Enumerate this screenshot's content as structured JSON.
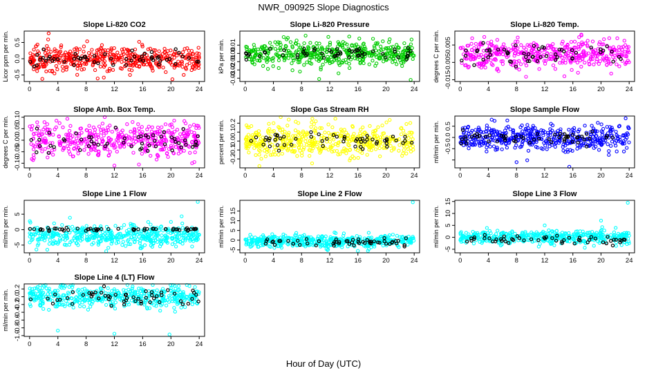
{
  "figure": {
    "title": "NWR_090925  Slope Diagnostics",
    "xlabel": "Hour of Day (UTC)"
  },
  "chart_data": [
    {
      "type": "scatter",
      "title": "Slope Li-820 CO2",
      "ylabel": "Licor ppm per min.",
      "color": "#ff0000",
      "xlim": [
        0,
        24
      ],
      "ylim": [
        -0.7,
        0.85
      ],
      "xticks": [
        0,
        4,
        8,
        12,
        16,
        20,
        24
      ],
      "yticks": [
        -0.5,
        0.0,
        0.5
      ],
      "yticklabels": [
        "-0.5",
        "0.0",
        "0.5"
      ],
      "spread": 0.18,
      "ref_spread": 0.12,
      "outliers": [
        {
          "x": 2.7,
          "y": 0.78
        },
        {
          "x": 1.8,
          "y": -0.62
        },
        {
          "x": 15.5,
          "y": 0.52
        },
        {
          "x": 10.5,
          "y": -0.58
        }
      ]
    },
    {
      "type": "scatter",
      "title": "Slope Li-820 Pressure",
      "ylabel": "kPa per min.",
      "color": "#00cc00",
      "xlim": [
        0,
        24
      ],
      "ylim": [
        -0.034,
        0.027
      ],
      "xticks": [
        0,
        4,
        8,
        12,
        16,
        20,
        24
      ],
      "yticks": [
        -0.03,
        -0.02,
        -0.01,
        0.0,
        0.01
      ],
      "yticklabels": [
        "-0.03",
        "-0.02",
        "-0.01",
        "0.00",
        "0.01"
      ],
      "spread": 0.008,
      "ref_spread": 0.004,
      "outliers": [
        {
          "x": 10.5,
          "y": -0.031
        },
        {
          "x": 23.5,
          "y": -0.032
        },
        {
          "x": 11.8,
          "y": 0.02
        },
        {
          "x": 16.2,
          "y": 0.018
        }
      ]
    },
    {
      "type": "scatter",
      "title": "Slope Li-820 Temp.",
      "ylabel": "degrees C per min.",
      "color": "#ff00ff",
      "xlim": [
        0,
        24
      ],
      "ylim": [
        -0.016,
        0.013
      ],
      "xticks": [
        0,
        4,
        8,
        12,
        16,
        20,
        24
      ],
      "yticks": [
        -0.015,
        -0.005,
        0.005
      ],
      "yticklabels": [
        "-0.015",
        "-0.005",
        "0.005"
      ],
      "spread": 0.004,
      "ref_spread": 0.003,
      "outliers": [
        {
          "x": 14.8,
          "y": -0.013
        },
        {
          "x": 17.2,
          "y": 0.011
        },
        {
          "x": 3.0,
          "y": -0.008
        }
      ]
    },
    {
      "type": "scatter",
      "title": "Slope Amb. Box Temp.",
      "ylabel": "degrees C per min.",
      "color": "#ff00ff",
      "xlim": [
        0,
        24
      ],
      "ylim": [
        -0.12,
        0.105
      ],
      "xticks": [
        0,
        4,
        8,
        12,
        16,
        20,
        24
      ],
      "yticks": [
        -0.1,
        -0.05,
        0.0,
        0.05,
        0.1
      ],
      "yticklabels": [
        "-0.10",
        "-0.05",
        "0.00",
        "0.05",
        "0.10"
      ],
      "spread": 0.035,
      "ref_spread": 0.025,
      "outliers": [
        {
          "x": 12.0,
          "y": -0.11
        },
        {
          "x": 3.8,
          "y": 0.085
        },
        {
          "x": 23.0,
          "y": -0.1
        }
      ]
    },
    {
      "type": "scatter",
      "title": "Slope Gas Stream RH",
      "ylabel": "percent per min.",
      "color": "#ffff00",
      "xlim": [
        0,
        24
      ],
      "ylim": [
        -0.3,
        0.28
      ],
      "xticks": [
        0,
        4,
        8,
        12,
        16,
        20,
        24
      ],
      "yticks": [
        -0.2,
        -0.1,
        0.0,
        0.1,
        0.2
      ],
      "yticklabels": [
        "-0.2",
        "-0.1",
        "0.0",
        "0.1",
        "0.2"
      ],
      "spread": 0.09,
      "ref_spread": 0.05,
      "outliers": [
        {
          "x": 2.0,
          "y": -0.28
        },
        {
          "x": 12.8,
          "y": 0.25
        },
        {
          "x": 9.5,
          "y": -0.25
        }
      ]
    },
    {
      "type": "scatter",
      "title": "Slope Sample Flow",
      "ylabel": "ml/min per min.",
      "color": "#0000ff",
      "xlim": [
        0,
        24
      ],
      "ylim": [
        -1.35,
        0.95
      ],
      "xticks": [
        0,
        4,
        8,
        12,
        16,
        20,
        24
      ],
      "yticks": [
        -1.0,
        -0.5,
        0.0,
        0.5
      ],
      "yticklabels": [
        "",
        "-0.5",
        "0.0",
        "0.5"
      ],
      "spread": 0.28,
      "ref_spread": 0.15,
      "outliers": [
        {
          "x": 23.5,
          "y": 0.85
        },
        {
          "x": 15.5,
          "y": -1.3
        },
        {
          "x": 8.0,
          "y": -1.1
        }
      ]
    },
    {
      "type": "scatter",
      "title": "Slope Line 1 Flow",
      "ylabel": "ml/min per min.",
      "color": "#00ffff",
      "xlim": [
        0,
        24
      ],
      "ylim": [
        -7.5,
        9.5
      ],
      "xticks": [
        0,
        4,
        8,
        12,
        16,
        20,
        24
      ],
      "yticks": [
        -5,
        0,
        5
      ],
      "yticklabels": [
        "-5",
        "0",
        "5"
      ],
      "center": -2.0,
      "spread": 1.6,
      "ref_center": 0.1,
      "ref_spread": 0.2,
      "outliers": [
        {
          "x": 23.8,
          "y": 9.0
        },
        {
          "x": 2.5,
          "y": -6.5
        },
        {
          "x": 20.0,
          "y": 2.5
        }
      ]
    },
    {
      "type": "scatter",
      "title": "Slope Line 2 Flow",
      "ylabel": "ml/min per min.",
      "color": "#00ffff",
      "xlim": [
        0,
        24
      ],
      "ylim": [
        -6.5,
        20.5
      ],
      "xticks": [
        0,
        4,
        8,
        12,
        16,
        20,
        24
      ],
      "yticks": [
        -5,
        0,
        5,
        10,
        15
      ],
      "yticklabels": [
        "-5",
        "0",
        "5",
        "10",
        "15"
      ],
      "center": -0.5,
      "spread": 1.5,
      "ref_center": -1.0,
      "ref_spread": 1.2,
      "outliers": [
        {
          "x": 23.8,
          "y": 19.5
        },
        {
          "x": 14.0,
          "y": 3.5
        },
        {
          "x": 16.0,
          "y": -5.5
        }
      ]
    },
    {
      "type": "scatter",
      "title": "Slope Line 3 Flow",
      "ylabel": "ml/min per min.",
      "color": "#00ffff",
      "xlim": [
        0,
        24
      ],
      "ylim": [
        -6.5,
        15.5
      ],
      "xticks": [
        0,
        4,
        8,
        12,
        16,
        20,
        24
      ],
      "yticks": [
        -5,
        0,
        5,
        10,
        15
      ],
      "yticklabels": [
        "-5",
        "0",
        "5",
        "10",
        "15"
      ],
      "center": 0.0,
      "spread": 1.4,
      "ref_center": -1.0,
      "ref_spread": 1.0,
      "outliers": [
        {
          "x": 23.8,
          "y": 14.5
        },
        {
          "x": 12.0,
          "y": 5.0
        },
        {
          "x": 20.0,
          "y": 7.0
        }
      ]
    },
    {
      "type": "scatter",
      "title": "Slope Line 4 (LT) Flow",
      "ylabel": "ml/min per min.",
      "color": "#00ffff",
      "xlim": [
        0,
        24
      ],
      "ylim": [
        -1.02,
        0.33
      ],
      "xticks": [
        0,
        4,
        8,
        12,
        16,
        20,
        24
      ],
      "yticks": [
        -1.0,
        -0.8,
        -0.6,
        -0.4,
        -0.2,
        0.0,
        0.2
      ],
      "yticklabels": [
        "-1.0",
        "-0.8",
        "-0.6",
        "-0.4",
        "-0.2",
        "0.0",
        "0.2"
      ],
      "center": 0.0,
      "spread": 0.14,
      "ref_center": 0.0,
      "ref_spread": 0.12,
      "outliers": [
        {
          "x": 4.0,
          "y": -0.87
        },
        {
          "x": 12.0,
          "y": -0.95
        },
        {
          "x": 19.8,
          "y": -0.97
        },
        {
          "x": 1.5,
          "y": 0.3
        }
      ]
    }
  ]
}
